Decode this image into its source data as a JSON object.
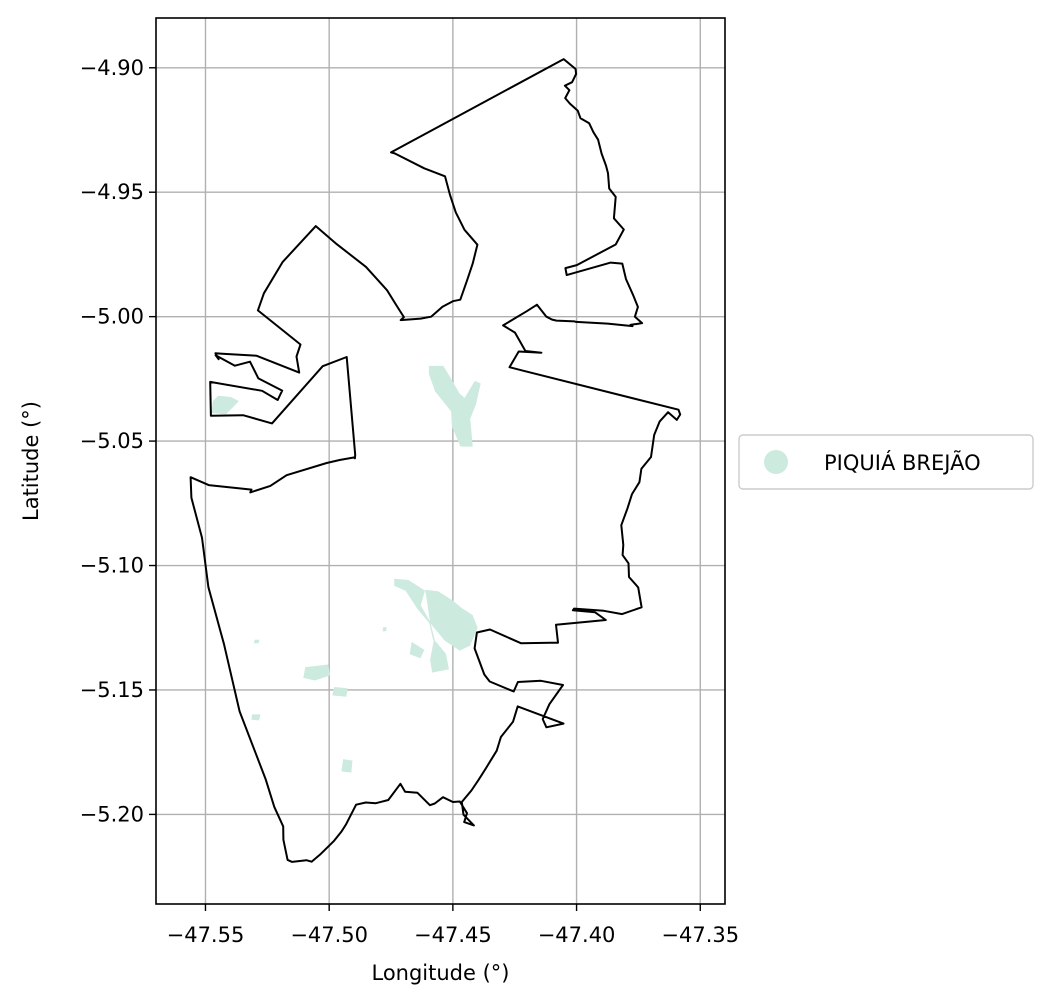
{
  "chart_data": {
    "type": "map",
    "xlabel": "Longitude (°)",
    "ylabel": "Latitude (°)",
    "xlim": [
      -47.57,
      -47.34
    ],
    "ylim": [
      -5.236,
      -4.88
    ],
    "grid": true,
    "x_ticks": [
      -47.55,
      -47.5,
      -47.45,
      -47.4,
      -47.35
    ],
    "x_tick_labels": [
      "−47.55",
      "−47.50",
      "−47.45",
      "−47.40",
      "−47.35"
    ],
    "y_ticks": [
      -4.9,
      -4.95,
      -5.0,
      -5.05,
      -5.1,
      -5.15,
      -5.2
    ],
    "y_tick_labels": [
      "−4.90",
      "−4.95",
      "−5.00",
      "−5.05",
      "−5.10",
      "−5.15",
      "−5.20"
    ],
    "legend": {
      "placement": "center-right outside",
      "entries": [
        {
          "label": "PIQUIÁ BREJÃO",
          "color": "#cdeade"
        }
      ]
    },
    "boundary_color": "#000000",
    "boundary": [
      [
        -47.475,
        -4.934
      ],
      [
        -47.4052,
        -4.8965
      ],
      [
        -47.4004,
        -4.9005
      ],
      [
        -47.4002,
        -4.9025
      ],
      [
        -47.4011,
        -4.9044
      ],
      [
        -47.4018,
        -4.9058
      ],
      [
        -47.4047,
        -4.9072
      ],
      [
        -47.4029,
        -4.909
      ],
      [
        -47.4046,
        -4.9122
      ],
      [
        -47.4027,
        -4.9144
      ],
      [
        -47.3995,
        -4.9173
      ],
      [
        -47.3984,
        -4.9203
      ],
      [
        -47.3949,
        -4.9223
      ],
      [
        -47.3932,
        -4.9259
      ],
      [
        -47.3913,
        -4.9289
      ],
      [
        -47.3899,
        -4.9345
      ],
      [
        -47.3881,
        -4.9393
      ],
      [
        -47.3873,
        -4.9424
      ],
      [
        -47.3868,
        -4.9485
      ],
      [
        -47.3842,
        -4.9519
      ],
      [
        -47.3849,
        -4.9605
      ],
      [
        -47.3809,
        -4.965
      ],
      [
        -47.3842,
        -4.971
      ],
      [
        -47.3999,
        -4.9793
      ],
      [
        -47.4045,
        -4.9805
      ],
      [
        -47.404,
        -4.9833
      ],
      [
        -47.3862,
        -4.9783
      ],
      [
        -47.3815,
        -4.9787
      ],
      [
        -47.38,
        -4.9849
      ],
      [
        -47.3772,
        -4.9912
      ],
      [
        -47.3752,
        -4.9961
      ],
      [
        -47.3764,
        -5.0
      ],
      [
        -47.3735,
        -5.0026
      ],
      [
        -47.3782,
        -5.0033
      ],
      [
        -47.3774,
        -5.0038
      ],
      [
        -47.3874,
        -5.0028
      ],
      [
        -47.4002,
        -5.0021
      ],
      [
        -47.4008,
        -5.0019
      ],
      [
        -47.4081,
        -5.0016
      ],
      [
        -47.4099,
        -5.0012
      ],
      [
        -47.4122,
        -5.0
      ],
      [
        -47.416,
        -4.9952
      ],
      [
        -47.4201,
        -4.9978
      ],
      [
        -47.4297,
        -5.0035
      ],
      [
        -47.4249,
        -5.0064
      ],
      [
        -47.4207,
        -5.0138
      ],
      [
        -47.4142,
        -5.0145
      ],
      [
        -47.4234,
        -5.014
      ],
      [
        -47.4271,
        -5.0203
      ],
      [
        -47.4216,
        -5.0217
      ],
      [
        -47.3588,
        -5.0374
      ],
      [
        -47.3581,
        -5.0393
      ],
      [
        -47.3595,
        -5.0415
      ],
      [
        -47.363,
        -5.0384
      ],
      [
        -47.3664,
        -5.0421
      ],
      [
        -47.3686,
        -5.0475
      ],
      [
        -47.3699,
        -5.0564
      ],
      [
        -47.3738,
        -5.0611
      ],
      [
        -47.3746,
        -5.0665
      ],
      [
        -47.3776,
        -5.0713
      ],
      [
        -47.3794,
        -5.077
      ],
      [
        -47.3819,
        -5.0838
      ],
      [
        -47.3811,
        -5.0917
      ],
      [
        -47.3814,
        -5.0958
      ],
      [
        -47.379,
        -5.0991
      ],
      [
        -47.3788,
        -5.1046
      ],
      [
        -47.3751,
        -5.1088
      ],
      [
        -47.3737,
        -5.1168
      ],
      [
        -47.3816,
        -5.1195
      ],
      [
        -47.389,
        -5.1182
      ],
      [
        -47.401,
        -5.1173
      ],
      [
        -47.4015,
        -5.118
      ],
      [
        -47.3925,
        -5.1188
      ],
      [
        -47.3882,
        -5.1219
      ],
      [
        -47.4083,
        -5.1238
      ],
      [
        -47.4075,
        -5.131
      ],
      [
        -47.4105,
        -5.131
      ],
      [
        -47.4225,
        -5.1312
      ],
      [
        -47.435,
        -5.1257
      ],
      [
        -47.4403,
        -5.1269
      ],
      [
        -47.4412,
        -5.1333
      ],
      [
        -47.4373,
        -5.1438
      ],
      [
        -47.4351,
        -5.1466
      ],
      [
        -47.4254,
        -5.1506
      ],
      [
        -47.4237,
        -5.1468
      ],
      [
        -47.4144,
        -5.1463
      ],
      [
        -47.4055,
        -5.148
      ],
      [
        -47.411,
        -5.1557
      ],
      [
        -47.4137,
        -5.1617
      ],
      [
        -47.4122,
        -5.165
      ],
      [
        -47.4053,
        -5.1635
      ],
      [
        -47.4238,
        -5.1566
      ],
      [
        -47.4257,
        -5.1628
      ],
      [
        -47.4306,
        -5.1689
      ],
      [
        -47.4323,
        -5.1744
      ],
      [
        -47.4366,
        -5.1814
      ],
      [
        -47.4396,
        -5.1861
      ],
      [
        -47.4425,
        -5.1904
      ],
      [
        -47.4464,
        -5.195
      ],
      [
        -47.4457,
        -5.2001
      ],
      [
        -47.4415,
        -5.2044
      ],
      [
        -47.4454,
        -5.2031
      ],
      [
        -47.4443,
        -5.1995
      ],
      [
        -47.4472,
        -5.1948
      ],
      [
        -47.45,
        -5.195
      ],
      [
        -47.454,
        -5.1931
      ],
      [
        -47.4573,
        -5.1956
      ],
      [
        -47.4593,
        -5.1963
      ],
      [
        -47.4643,
        -5.1913
      ],
      [
        -47.4693,
        -5.1909
      ],
      [
        -47.4712,
        -5.1877
      ],
      [
        -47.4761,
        -5.1942
      ],
      [
        -47.4811,
        -5.1955
      ],
      [
        -47.4852,
        -5.1952
      ],
      [
        -47.4891,
        -5.1961
      ],
      [
        -47.4931,
        -5.2039
      ],
      [
        -47.4951,
        -5.207
      ],
      [
        -47.498,
        -5.2106
      ],
      [
        -47.5033,
        -5.2158
      ],
      [
        -47.5071,
        -5.219
      ],
      [
        -47.5092,
        -5.2184
      ],
      [
        -47.515,
        -5.2191
      ],
      [
        -47.5168,
        -5.2183
      ],
      [
        -47.5185,
        -5.2102
      ],
      [
        -47.5186,
        -5.2048
      ],
      [
        -47.5222,
        -5.197
      ],
      [
        -47.5257,
        -5.1858
      ],
      [
        -47.5362,
        -5.1586
      ],
      [
        -47.5425,
        -5.1316
      ],
      [
        -47.5488,
        -5.1087
      ],
      [
        -47.5514,
        -5.0888
      ],
      [
        -47.5557,
        -5.0728
      ],
      [
        -47.556,
        -5.0645
      ],
      [
        -47.5487,
        -5.0677
      ],
      [
        -47.5314,
        -5.0695
      ],
      [
        -47.5319,
        -5.0706
      ],
      [
        -47.5238,
        -5.068
      ],
      [
        -47.5172,
        -5.0637
      ],
      [
        -47.501,
        -5.0588
      ],
      [
        -47.4958,
        -5.0576
      ],
      [
        -47.4901,
        -5.0566
      ],
      [
        -47.4896,
        -5.0569
      ],
      [
        -47.4895,
        -5.0555
      ],
      [
        -47.4929,
        -5.0162
      ],
      [
        -47.5026,
        -5.0199
      ],
      [
        -47.5231,
        -5.0429
      ],
      [
        -47.5348,
        -5.0396
      ],
      [
        -47.5478,
        -5.0398
      ],
      [
        -47.5481,
        -5.0262
      ],
      [
        -47.5271,
        -5.0298
      ],
      [
        -47.5208,
        -5.0335
      ],
      [
        -47.519,
        -5.0297
      ],
      [
        -47.5286,
        -5.0248
      ],
      [
        -47.532,
        -5.0181
      ],
      [
        -47.5381,
        -5.0197
      ],
      [
        -47.5459,
        -5.0155
      ],
      [
        -47.5447,
        -5.0171
      ],
      [
        -47.546,
        -5.0147
      ],
      [
        -47.5432,
        -5.0149
      ],
      [
        -47.5294,
        -5.0157
      ],
      [
        -47.5121,
        -5.0225
      ],
      [
        -47.5132,
        -5.016
      ],
      [
        -47.5116,
        -5.0112
      ],
      [
        -47.5288,
        -4.9975
      ],
      [
        -47.5264,
        -4.9906
      ],
      [
        -47.5188,
        -4.978
      ],
      [
        -47.5054,
        -4.9636
      ],
      [
        -47.4969,
        -4.9709
      ],
      [
        -47.4851,
        -4.98
      ],
      [
        -47.4766,
        -4.9894
      ],
      [
        -47.4729,
        -4.9953
      ],
      [
        -47.4698,
        -5.0002
      ],
      [
        -47.4711,
        -5.0014
      ],
      [
        -47.463,
        -5.0008
      ],
      [
        -47.4588,
        -5.0
      ],
      [
        -47.4542,
        -4.996
      ],
      [
        -47.45,
        -4.9938
      ],
      [
        -47.447,
        -4.9932
      ],
      [
        -47.4443,
        -4.9855
      ],
      [
        -47.442,
        -4.9787
      ],
      [
        -47.4401,
        -4.9711
      ],
      [
        -47.4453,
        -4.9651
      ],
      [
        -47.4488,
        -4.9581
      ],
      [
        -47.4511,
        -4.9512
      ],
      [
        -47.4532,
        -4.9436
      ],
      [
        -47.4616,
        -4.9404
      ],
      [
        -47.4735,
        -4.9344
      ]
    ],
    "area_color": "#cdeade",
    "areas": [
      [
        [
          -47.4595,
          -5.02
        ],
        [
          -47.454,
          -5.02
        ],
        [
          -47.4512,
          -5.0245
        ],
        [
          -47.4475,
          -5.031
        ],
        [
          -47.4452,
          -5.033
        ],
        [
          -47.441,
          -5.026
        ],
        [
          -47.439,
          -5.027
        ],
        [
          -47.4408,
          -5.035
        ],
        [
          -47.4432,
          -5.041
        ],
        [
          -47.4422,
          -5.052
        ],
        [
          -47.4468,
          -5.052
        ],
        [
          -47.4502,
          -5.044
        ],
        [
          -47.4505,
          -5.038
        ],
        [
          -47.457,
          -5.03
        ],
        [
          -47.4595,
          -5.023
        ]
      ],
      [
        [
          -47.4735,
          -5.1055
        ],
        [
          -47.468,
          -5.106
        ],
        [
          -47.4615,
          -5.1102
        ],
        [
          -47.4632,
          -5.116
        ],
        [
          -47.4595,
          -5.1225
        ],
        [
          -47.4578,
          -5.1298
        ],
        [
          -47.453,
          -5.1355
        ],
        [
          -47.4518,
          -5.1415
        ],
        [
          -47.4582,
          -5.1428
        ],
        [
          -47.459,
          -5.138
        ],
        [
          -47.4575,
          -5.13
        ],
        [
          -47.4592,
          -5.1232
        ],
        [
          -47.464,
          -5.1175
        ],
        [
          -47.469,
          -5.11
        ],
        [
          -47.4735,
          -5.108
        ]
      ],
      [
        [
          -47.461,
          -5.11
        ],
        [
          -47.456,
          -5.1105
        ],
        [
          -47.4502,
          -5.1142
        ],
        [
          -47.4462,
          -5.1175
        ],
        [
          -47.4422,
          -5.12
        ],
        [
          -47.4402,
          -5.125
        ],
        [
          -47.4432,
          -5.132
        ],
        [
          -47.4472,
          -5.134
        ],
        [
          -47.4532,
          -5.13
        ],
        [
          -47.459,
          -5.123
        ],
        [
          -47.46,
          -5.116
        ]
      ],
      [
        [
          -47.4665,
          -5.131
        ],
        [
          -47.4618,
          -5.134
        ],
        [
          -47.4632,
          -5.137
        ],
        [
          -47.4672,
          -5.1355
        ]
      ],
      [
        [
          -47.5095,
          -5.141
        ],
        [
          -47.5005,
          -5.14
        ],
        [
          -47.4998,
          -5.144
        ],
        [
          -47.5058,
          -5.146
        ],
        [
          -47.5102,
          -5.145
        ]
      ],
      [
        [
          -47.4978,
          -5.149
        ],
        [
          -47.4928,
          -5.1495
        ],
        [
          -47.4932,
          -5.1525
        ],
        [
          -47.4985,
          -5.152
        ]
      ],
      [
        [
          -47.5448,
          -5.032
        ],
        [
          -47.5398,
          -5.0325
        ],
        [
          -47.5368,
          -5.034
        ],
        [
          -47.5418,
          -5.039
        ],
        [
          -47.5475,
          -5.0385
        ],
        [
          -47.5468,
          -5.034
        ]
      ],
      [
        [
          -47.4942,
          -5.178
        ],
        [
          -47.4908,
          -5.1785
        ],
        [
          -47.4912,
          -5.183
        ],
        [
          -47.4948,
          -5.1825
        ]
      ],
      [
        [
          -47.531,
          -5.16
        ],
        [
          -47.528,
          -5.16
        ],
        [
          -47.5285,
          -5.162
        ],
        [
          -47.5312,
          -5.1618
        ]
      ],
      [
        [
          -47.53,
          -5.13
        ],
        [
          -47.5285,
          -5.13
        ],
        [
          -47.5287,
          -5.131
        ],
        [
          -47.5302,
          -5.131
        ]
      ],
      [
        [
          -47.478,
          -5.125
        ],
        [
          -47.477,
          -5.125
        ],
        [
          -47.4772,
          -5.1262
        ],
        [
          -47.4782,
          -5.1262
        ]
      ]
    ]
  }
}
